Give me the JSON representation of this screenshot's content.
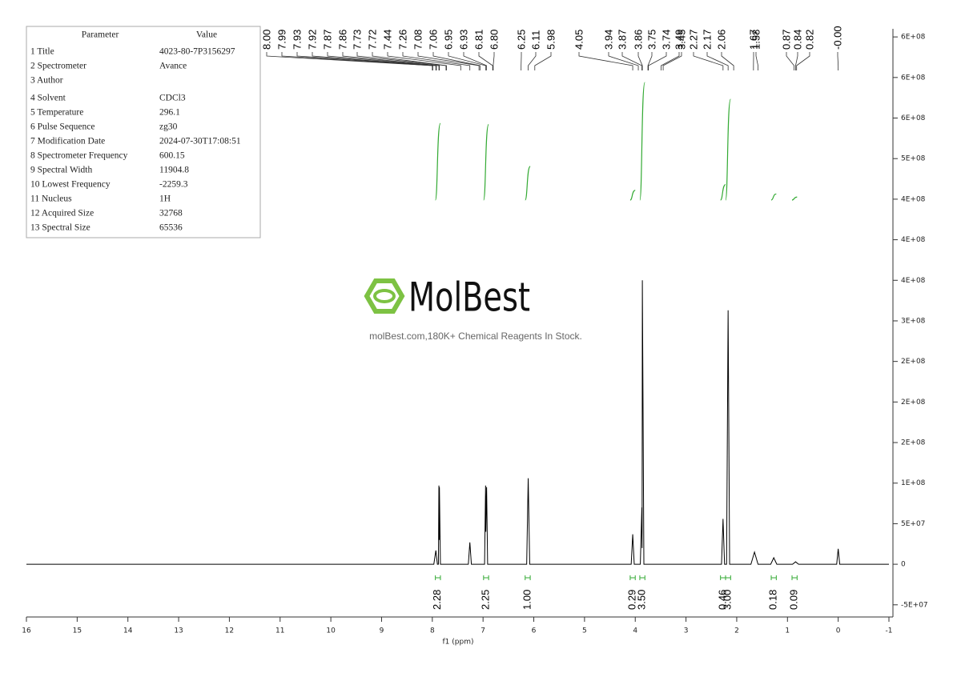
{
  "parameters": {
    "header": [
      "Parameter",
      "Value"
    ],
    "rows": [
      [
        "1 Title",
        "4023-80-7P3156297"
      ],
      [
        "2 Spectrometer",
        "Avance"
      ],
      [
        "3 Author"
      ],
      [
        "4 Solvent",
        "CDCl3"
      ],
      [
        "5 Temperature",
        "296.1"
      ],
      [
        "6 Pulse Sequence",
        "zg30"
      ],
      [
        "7 Modification Date",
        "2024-07-30T17:08:51"
      ],
      [
        "8 Spectrometer Frequency",
        "600.15"
      ],
      [
        "9 Spectral Width",
        "11904.8"
      ],
      [
        "10 Lowest Frequency",
        "-2259.3"
      ],
      [
        "11 Nucleus",
        "1H"
      ],
      [
        "12 Acquired Size",
        "32768"
      ],
      [
        "13 Spectral Size",
        "65536"
      ]
    ]
  },
  "watermark": {
    "brand": "MolBest",
    "tagline": "molBest.com,180K+ Chemical Reagents In Stock."
  },
  "chart_data": {
    "type": "line",
    "xlabel": "f1 (ppm)",
    "color": "#000000",
    "x": [
      16,
      7.97,
      7.93,
      7.9,
      7.88,
      7.87,
      7.865,
      7.86,
      7.84,
      7.29,
      7.26,
      7.23,
      6.97,
      6.95,
      6.945,
      6.93,
      6.91,
      6.14,
      6.11,
      6.08,
      4.08,
      4.05,
      4.02,
      3.9,
      3.87,
      3.865,
      3.86,
      3.83,
      2.3,
      2.27,
      2.24,
      2.2,
      2.17,
      2.14,
      1.72,
      1.65,
      1.58,
      1.33,
      1.27,
      1.21,
      0.9,
      0.84,
      0.78,
      0.03,
      0,
      -0.03,
      -1
    ],
    "values": [
      0,
      0,
      17000000,
      0,
      0,
      97000000,
      30000000,
      95000000,
      0,
      0,
      27000000,
      0,
      0,
      97000000,
      40000000,
      95000000,
      0,
      0,
      106000000,
      0,
      0,
      37000000,
      0,
      0,
      70000000,
      20000000,
      350000000,
      0,
      0,
      56000000,
      0,
      0,
      313000000,
      0,
      0,
      15000000,
      0,
      0,
      8000000,
      0,
      0,
      3000000,
      0,
      0,
      19000000,
      0,
      0
    ],
    "xlim": [
      16,
      -1
    ],
    "xticks": [
      16,
      15,
      14,
      13,
      12,
      11,
      10,
      9,
      8,
      7,
      6,
      5,
      4,
      3,
      2,
      1,
      0,
      -1
    ],
    "ylim": [
      -65000000,
      660000000
    ],
    "yticks": [
      {
        "value": -50000000,
        "label": "-5E+07"
      },
      0,
      {
        "value": 50000000,
        "label": "5E+07"
      },
      {
        "value": 100000000,
        "label": "1E+08"
      },
      {
        "value": 150000000,
        "label": "2E+08"
      },
      {
        "value": 200000000,
        "label": "2E+08"
      },
      {
        "value": 250000000,
        "label": "2E+08"
      },
      {
        "value": 300000000,
        "label": "3E+08"
      },
      {
        "value": 350000000,
        "label": "4E+08"
      },
      {
        "value": 400000000,
        "label": "4E+08"
      },
      {
        "value": 450000000,
        "label": "4E+08"
      },
      {
        "value": 500000000,
        "label": "5E+08"
      },
      {
        "value": 550000000,
        "label": "6E+08"
      },
      {
        "value": 600000000,
        "label": "6E+08"
      },
      {
        "value": 650000000,
        "label": "6E+08"
      }
    ],
    "peak_labels": [
      "8.00",
      "7.99",
      "7.93",
      "7.92",
      "7.87",
      "7.86",
      "7.73",
      "7.72",
      "7.44",
      "7.26",
      "7.08",
      "7.06",
      "6.95",
      "6.93",
      "6.81",
      "6.80",
      "6.25",
      "6.11",
      "5.98",
      "4.05",
      "3.94",
      "3.87",
      "3.86",
      "3.75",
      "3.74",
      "3.49",
      "3.45",
      "2.27",
      "2.17",
      "2.06",
      "1.67",
      "1.58",
      "0.87",
      "0.84",
      "0.82",
      "-0.00"
    ],
    "integrals": {
      "color": "#33aa33",
      "x": [
        7.89,
        6.94,
        6.12,
        4.05,
        3.86,
        2.27,
        2.17,
        1.27,
        0.86
      ],
      "values": [
        2.28,
        2.25,
        1,
        0.29,
        3.5,
        0.46,
        3,
        0.18,
        0.09
      ],
      "value_labels": [
        "2.28",
        "2.25",
        "1.00",
        "0.29",
        "3.50",
        "0.46",
        "3.00",
        "0.18",
        "0.09"
      ]
    }
  }
}
